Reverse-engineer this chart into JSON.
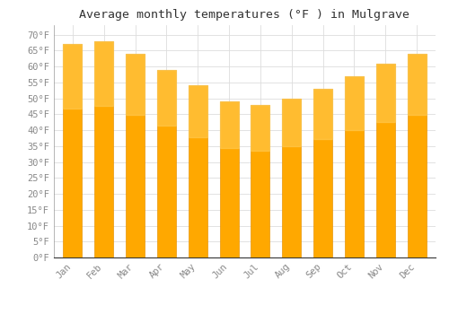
{
  "title": "Average monthly temperatures (°F ) in Mulgrave",
  "months": [
    "Jan",
    "Feb",
    "Mar",
    "Apr",
    "May",
    "Jun",
    "Jul",
    "Aug",
    "Sep",
    "Oct",
    "Nov",
    "Dec"
  ],
  "values": [
    67,
    68,
    64,
    59,
    54,
    49,
    48,
    50,
    53,
    57,
    61,
    64
  ],
  "bar_color_top": "#FFC030",
  "bar_color_bottom": "#FFB020",
  "bar_edge_color": "#E8960A",
  "background_color": "#FFFFFF",
  "plot_bg_color": "#FFFFFF",
  "grid_color": "#DDDDDD",
  "yticks": [
    0,
    5,
    10,
    15,
    20,
    25,
    30,
    35,
    40,
    45,
    50,
    55,
    60,
    65,
    70
  ],
  "ylim": [
    0,
    73
  ],
  "title_fontsize": 9.5,
  "tick_fontsize": 7.5,
  "bar_width": 0.6
}
